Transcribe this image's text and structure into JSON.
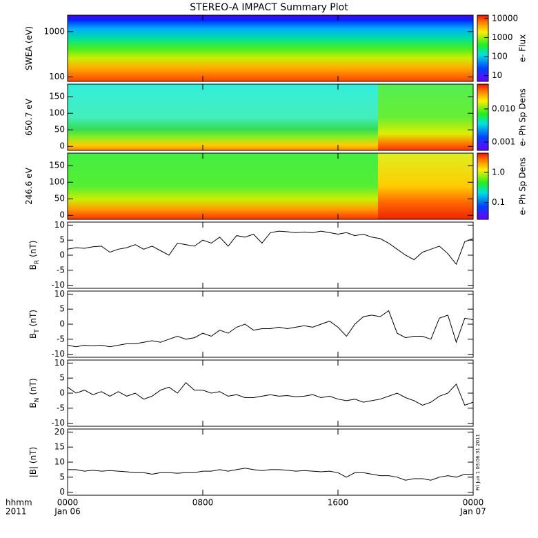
{
  "title": "STEREO-A IMPACT Summary Plot",
  "chart_data": [
    {
      "type": "spectrogram",
      "ylabel": "SWEA (eV)",
      "ylog": true,
      "ylim": [
        80,
        2300
      ],
      "yticks": [
        100,
        1000
      ],
      "colorbar": {
        "label": "e- Flux",
        "log": true,
        "lim": [
          5,
          15000
        ],
        "ticks": [
          10,
          100,
          1000,
          10000
        ]
      }
    },
    {
      "type": "spectrogram",
      "ylabel": "650.7 eV",
      "ylog": false,
      "ylim": [
        -12,
        188
      ],
      "yticks": [
        0,
        50,
        100,
        150
      ],
      "colorbar": {
        "label": "e- Ph Sp Dens",
        "log": true,
        "lim": [
          0.00056,
          0.056
        ],
        "ticks": [
          0.001,
          {
            "value": 0.01,
            "label": "0.010"
          }
        ]
      }
    },
    {
      "type": "spectrogram",
      "ylabel": "246.6 eV",
      "ylog": false,
      "ylim": [
        -12,
        188
      ],
      "yticks": [
        0,
        50,
        100,
        150
      ],
      "colorbar": {
        "label": "e- Ph Sp Dens",
        "log": true,
        "lim": [
          0.028,
          4.3
        ],
        "ticks": [
          0.1,
          {
            "value": 1,
            "label": "1.0"
          }
        ]
      }
    },
    {
      "type": "line",
      "ylabel": "B",
      "ylabel_sub": "R",
      "ylabel_unit": "(nT)",
      "ylim": [
        -11,
        11
      ],
      "yticks": [
        -10,
        -5,
        0,
        5,
        10
      ],
      "color": "#000000",
      "x": [
        0,
        0.5,
        1,
        1.5,
        2,
        2.5,
        3,
        3.5,
        4,
        4.5,
        5,
        5.5,
        6,
        6.5,
        7,
        7.5,
        8,
        8.5,
        9,
        9.5,
        10,
        10.5,
        11,
        11.5,
        12,
        12.5,
        13,
        13.5,
        14,
        14.5,
        15,
        15.5,
        16,
        16.5,
        17,
        17.5,
        18,
        18.5,
        19,
        19.5,
        20,
        20.5,
        21,
        21.5,
        22,
        22.5,
        23,
        23.5,
        24
      ],
      "values": [
        2,
        2.5,
        2.3,
        2.8,
        3,
        1,
        2,
        2.5,
        3.5,
        2,
        3,
        1.5,
        0,
        4,
        3.5,
        3,
        5,
        4,
        6,
        3,
        6.5,
        6,
        7,
        4,
        7.5,
        8,
        7.8,
        7.5,
        7.7,
        7.5,
        8,
        7.5,
        7,
        7.5,
        6.5,
        7,
        6,
        5.5,
        4,
        2,
        0,
        -1.5,
        1,
        2,
        3,
        0.5,
        -3,
        4.5,
        5.5
      ]
    },
    {
      "type": "line",
      "ylabel": "B",
      "ylabel_sub": "T",
      "ylabel_unit": "(nT)",
      "ylim": [
        -11,
        11
      ],
      "yticks": [
        -10,
        -5,
        0,
        5,
        10
      ],
      "color": "#000000",
      "x": [
        0,
        0.5,
        1,
        1.5,
        2,
        2.5,
        3,
        3.5,
        4,
        4.5,
        5,
        5.5,
        6,
        6.5,
        7,
        7.5,
        8,
        8.5,
        9,
        9.5,
        10,
        10.5,
        11,
        11.5,
        12,
        12.5,
        13,
        13.5,
        14,
        14.5,
        15,
        15.5,
        16,
        16.5,
        17,
        17.5,
        18,
        18.5,
        19,
        19.5,
        20,
        20.5,
        21,
        21.5,
        22,
        22.5,
        23,
        23.5,
        24
      ],
      "values": [
        -7,
        -7.5,
        -7,
        -7.2,
        -7,
        -7.5,
        -7,
        -6.5,
        -6.5,
        -6,
        -5.5,
        -6,
        -5,
        -4,
        -5,
        -4.5,
        -3,
        -4,
        -2,
        -3,
        -1,
        0,
        -2,
        -1.5,
        -1.5,
        -1,
        -1.5,
        -1,
        -0.5,
        -1,
        0,
        1,
        -1,
        -4,
        0,
        2.5,
        3,
        2.5,
        4.5,
        -3,
        -4.5,
        -4,
        -4,
        -5,
        2,
        3,
        -6,
        2,
        1.5
      ]
    },
    {
      "type": "line",
      "ylabel": "B",
      "ylabel_sub": "N",
      "ylabel_unit": "(nT)",
      "ylim": [
        -11,
        11
      ],
      "yticks": [
        -10,
        -5,
        0,
        5,
        10
      ],
      "color": "#000000",
      "x": [
        0,
        0.5,
        1,
        1.5,
        2,
        2.5,
        3,
        3.5,
        4,
        4.5,
        5,
        5.5,
        6,
        6.5,
        7,
        7.5,
        8,
        8.5,
        9,
        9.5,
        10,
        10.5,
        11,
        11.5,
        12,
        12.5,
        13,
        13.5,
        14,
        14.5,
        15,
        15.5,
        16,
        16.5,
        17,
        17.5,
        18,
        18.5,
        19,
        19.5,
        20,
        20.5,
        21,
        21.5,
        22,
        22.5,
        23,
        23.5,
        24
      ],
      "values": [
        2,
        0,
        1,
        -0.5,
        0.5,
        -1,
        0.5,
        -1,
        0,
        -2,
        -1,
        1,
        2,
        0,
        3.5,
        1,
        1,
        0,
        0.5,
        -1,
        -0.5,
        -1.5,
        -1.5,
        -1,
        -0.5,
        -1,
        -0.8,
        -1.2,
        -1,
        -0.5,
        -1.5,
        -1,
        -2,
        -2.5,
        -2,
        -3,
        -2.5,
        -2,
        -1,
        0,
        -1.5,
        -2.5,
        -4,
        -3,
        -1,
        0,
        3,
        -4,
        -3
      ]
    },
    {
      "type": "line",
      "ylabel": "|B| (nT)",
      "ylim": [
        -1,
        21
      ],
      "yticks": [
        0,
        5,
        10,
        15,
        20
      ],
      "color": "#000000",
      "x": [
        0,
        0.5,
        1,
        1.5,
        2,
        2.5,
        3,
        3.5,
        4,
        4.5,
        5,
        5.5,
        6,
        6.5,
        7,
        7.5,
        8,
        8.5,
        9,
        9.5,
        10,
        10.5,
        11,
        11.5,
        12,
        12.5,
        13,
        13.5,
        14,
        14.5,
        15,
        15.5,
        16,
        16.5,
        17,
        17.5,
        18,
        18.5,
        19,
        19.5,
        20,
        20.5,
        21,
        21.5,
        22,
        22.5,
        23,
        23.5,
        24
      ],
      "values": [
        7.5,
        7.5,
        7,
        7.3,
        7,
        7.2,
        7,
        6.8,
        6.5,
        6.5,
        6,
        6.5,
        6.5,
        6.3,
        6.5,
        6.5,
        7,
        7,
        7.5,
        7,
        7.5,
        8,
        7.5,
        7.2,
        7.5,
        7.5,
        7.3,
        7,
        7.2,
        7,
        6.8,
        7,
        6.5,
        5,
        6.5,
        6.5,
        6,
        5.5,
        5.5,
        5,
        4,
        4.5,
        4.5,
        4,
        5,
        5.5,
        5,
        6,
        6
      ],
      "xlim": [
        0,
        24
      ],
      "xticks": [
        {
          "value": 0,
          "label": "0000",
          "sublabel": "Jan 06"
        },
        {
          "value": 8,
          "label": "0800"
        },
        {
          "value": 16,
          "label": "1600"
        },
        {
          "value": 24,
          "label": "0000",
          "sublabel": "Jan 07"
        }
      ],
      "xlabel": "hhmm",
      "xlabel2": "2011",
      "footnote": "Fri Jun 1 03:06:31 2011"
    }
  ]
}
